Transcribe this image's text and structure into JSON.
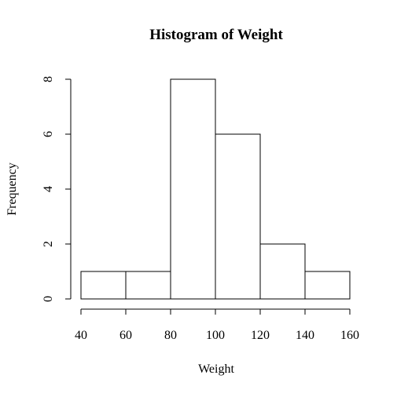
{
  "chart_data": {
    "type": "bar",
    "title": "Histogram of Weight",
    "xlabel": "Weight",
    "ylabel": "Frequency",
    "bins": [
      {
        "from": 40,
        "to": 60,
        "count": 1
      },
      {
        "from": 60,
        "to": 80,
        "count": 1
      },
      {
        "from": 80,
        "to": 100,
        "count": 8
      },
      {
        "from": 100,
        "to": 120,
        "count": 6
      },
      {
        "from": 120,
        "to": 140,
        "count": 2
      },
      {
        "from": 140,
        "to": 160,
        "count": 1
      }
    ],
    "xlim": [
      40,
      160
    ],
    "ylim": [
      0,
      8
    ],
    "xticks": [
      40,
      60,
      80,
      100,
      120,
      140,
      160
    ],
    "yticks": [
      0,
      2,
      4,
      6,
      8
    ],
    "grid": false,
    "bar_fill": "#ffffff",
    "bar_stroke": "#000000"
  }
}
